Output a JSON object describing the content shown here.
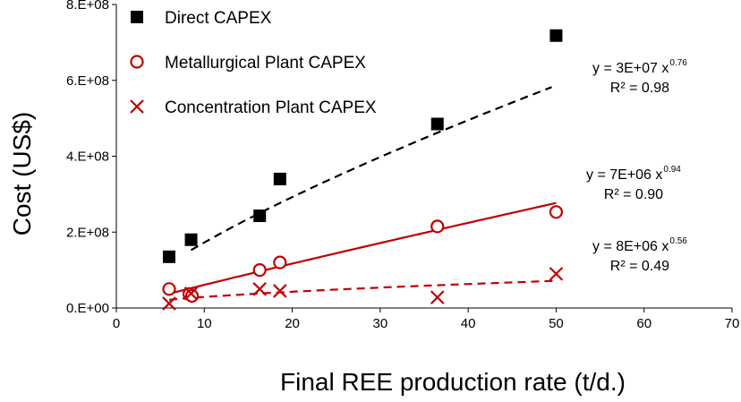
{
  "chart_data": {
    "type": "scatter",
    "xlabel": "Final REE production rate (t/d.)",
    "ylabel": "Cost (US$)",
    "xlim": [
      0,
      70
    ],
    "ylim": [
      0,
      800000000
    ],
    "x_ticks": [
      0,
      10,
      20,
      30,
      40,
      50,
      60,
      70
    ],
    "x_tick_labels": [
      "0",
      "10",
      "20",
      "30",
      "40",
      "50",
      "60",
      "70"
    ],
    "y_ticks": [
      0,
      200000000,
      400000000,
      600000000,
      800000000
    ],
    "y_tick_labels": [
      "0.E+00",
      "2.E+08",
      "4.E+08",
      "6.E+08",
      "8.E+08"
    ],
    "grid": false,
    "legend_position": "top-left",
    "series": [
      {
        "name": "Direct CAPEX",
        "marker": "square",
        "color": "#000000",
        "points": [
          [
            6,
            135000000
          ],
          [
            8.5,
            180000000
          ],
          [
            16.3,
            243000000
          ],
          [
            18.6,
            340000000
          ],
          [
            36.5,
            485000000
          ],
          [
            50,
            718000000
          ]
        ],
        "trend": {
          "a": 30000000,
          "b": 0.76,
          "x_range": [
            8.5,
            49.5
          ],
          "style": "dashed",
          "color": "#000000"
        },
        "equation": {
          "lead": "y = 3E+07 x",
          "exp": "0.76",
          "r2": "R² = 0.98"
        }
      },
      {
        "name": "Metallurgical Plant CAPEX",
        "marker": "circle",
        "color": "#c00000",
        "points": [
          [
            6,
            50000000
          ],
          [
            8.3,
            37000000
          ],
          [
            8.6,
            32000000
          ],
          [
            16.3,
            100000000
          ],
          [
            18.6,
            120000000
          ],
          [
            36.5,
            215000000
          ],
          [
            50,
            253000000
          ]
        ],
        "trend": {
          "a": 7000000,
          "b": 0.94,
          "x_range": [
            6,
            50
          ],
          "style": "solid",
          "color": "#c00000"
        },
        "equation": {
          "lead": "y = 7E+06 x",
          "exp": "0.94",
          "r2": "R² = 0.90"
        }
      },
      {
        "name": "Concentration Plant CAPEX",
        "marker": "x",
        "color": "#c00000",
        "points": [
          [
            6,
            12000000
          ],
          [
            8.5,
            38000000
          ],
          [
            16.3,
            50000000
          ],
          [
            18.6,
            45000000
          ],
          [
            36.5,
            28000000
          ],
          [
            50,
            90000000
          ]
        ],
        "trend": {
          "a": 8000000,
          "b": 0.56,
          "x_range": [
            6,
            50
          ],
          "style": "dashed",
          "color": "#c00000"
        },
        "equation": {
          "lead": "y = 8E+06 x",
          "exp": "0.56",
          "r2": "R² = 0.49"
        }
      }
    ]
  }
}
